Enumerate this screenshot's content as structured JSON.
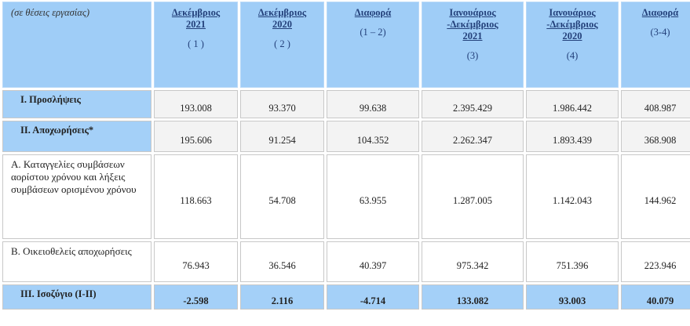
{
  "table": {
    "corner": "(σε θέσεις εργασίας)",
    "columns": [
      {
        "title": [
          "Δεκέμβριος",
          "2021"
        ],
        "note": "( 1 )"
      },
      {
        "title": [
          "Δεκέμβριος",
          "2020"
        ],
        "note": "( 2 )"
      },
      {
        "title": [
          "Διαφορά"
        ],
        "note": "(1 – 2)"
      },
      {
        "title": [
          "Ιανουάριος",
          "-Δεκέμβριος",
          "2021"
        ],
        "note": "(3)"
      },
      {
        "title": [
          "Ιανουάριος",
          "-Δεκέμβριος",
          "2020"
        ],
        "note": "(4)"
      },
      {
        "title": [
          "Διαφορά"
        ],
        "note": "(3-4)"
      }
    ],
    "rows": [
      {
        "label": "Ι. Προσλήψεις",
        "cells": [
          "193.008",
          "93.370",
          "99.638",
          "2.395.429",
          "1.986.442",
          "408.987"
        ]
      },
      {
        "label": "ΙΙ. Αποχωρήσεις*",
        "cells": [
          "195.606",
          "91.254",
          "104.352",
          "2.262.347",
          "1.893.439",
          "368.908"
        ]
      },
      {
        "label": "Α. Καταγγελίες συμβάσεων αορίστου χρόνου και λήξεις συμβάσεων ορισμένου χρόνου",
        "cells": [
          "118.663",
          "54.708",
          "63.955",
          "1.287.005",
          "1.142.043",
          "144.962"
        ]
      },
      {
        "label": "Β. Οικειοθελείς αποχωρήσεις",
        "cells": [
          "76.943",
          "36.546",
          "40.397",
          "975.342",
          "751.396",
          "223.946"
        ]
      },
      {
        "label": "ΙΙΙ. Ισοζύγιο (Ι-ΙΙ)",
        "cells": [
          "-2.598",
          "2.116",
          "-4.714",
          "133.082",
          "93.003",
          "40.079"
        ]
      }
    ]
  }
}
